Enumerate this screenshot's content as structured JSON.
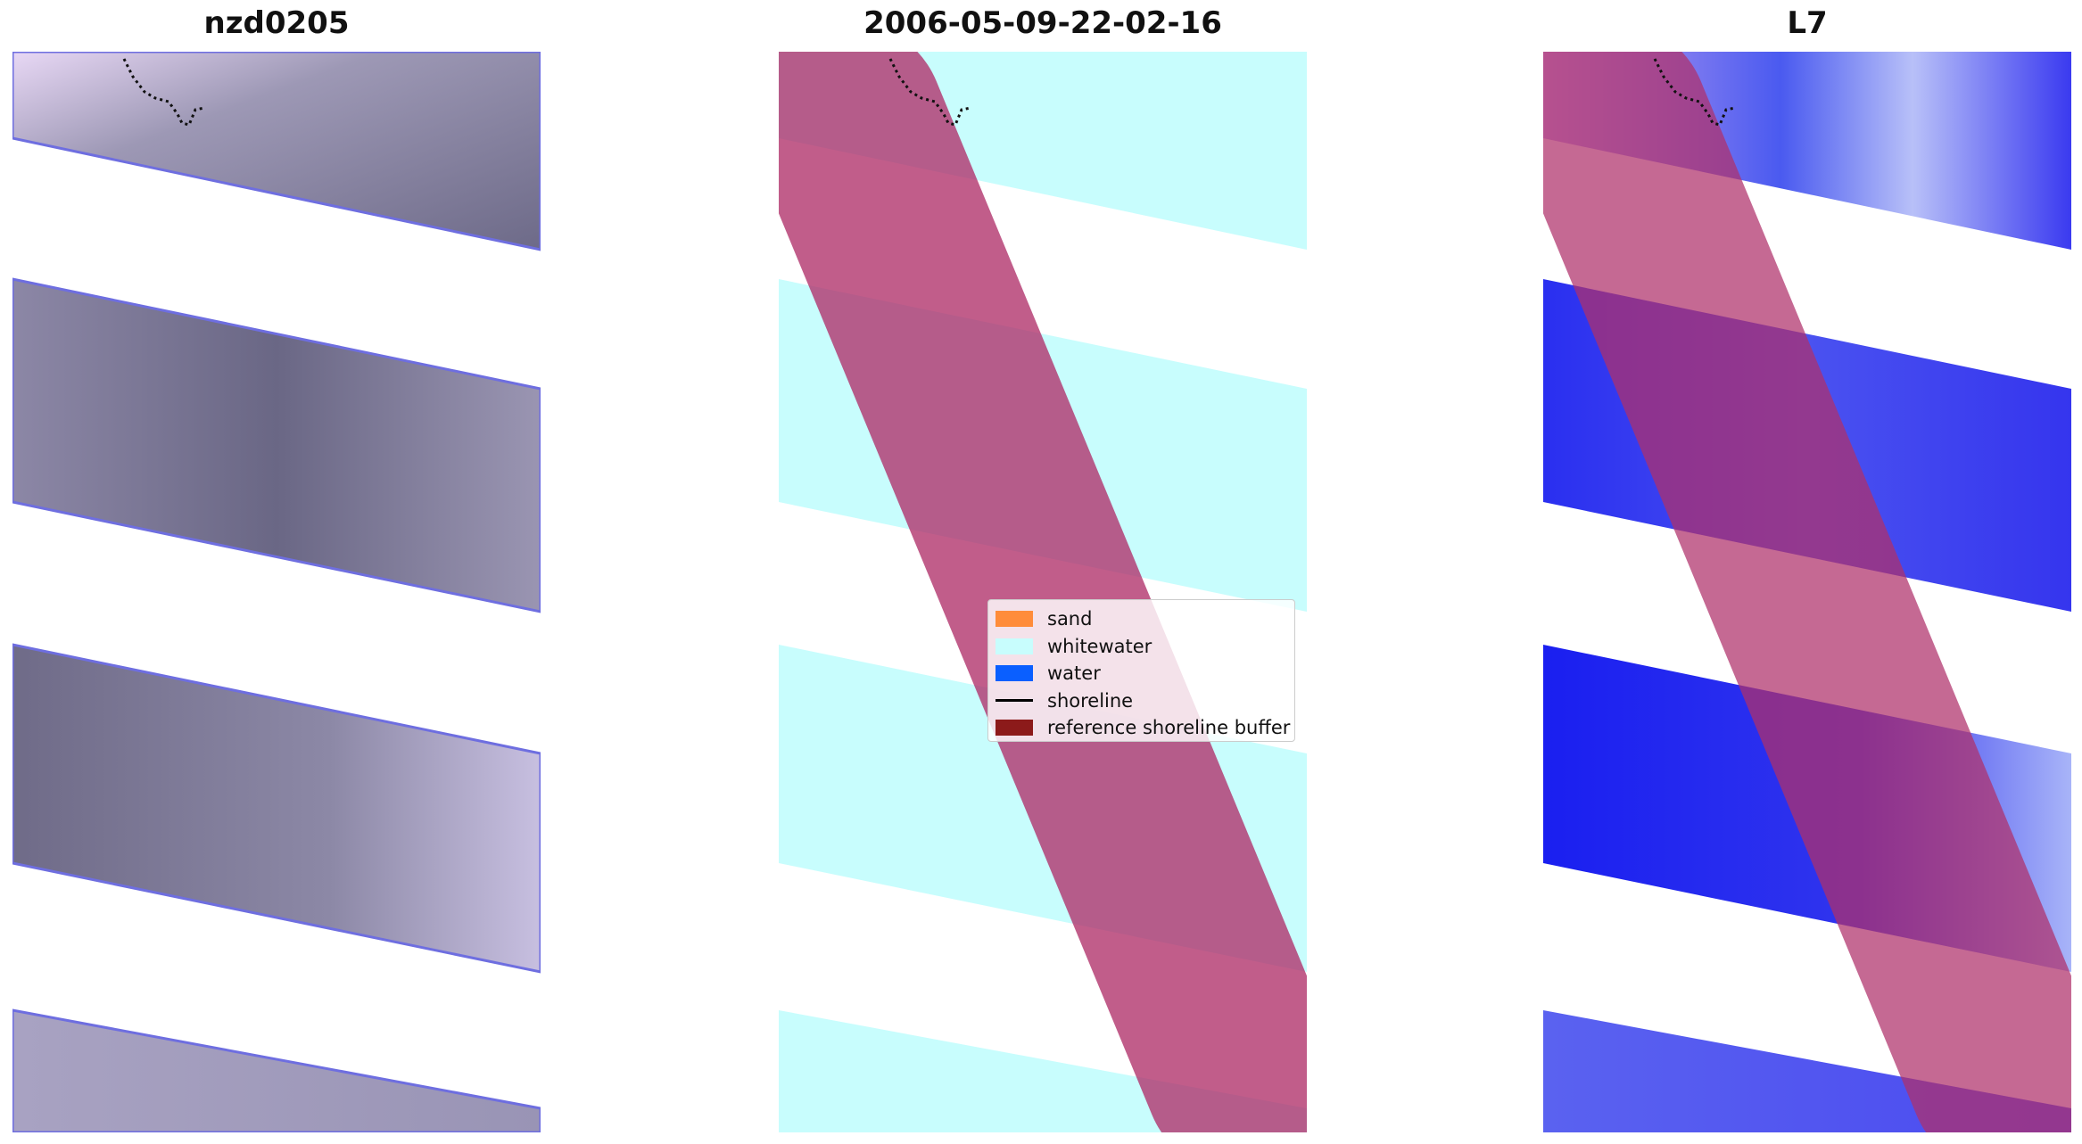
{
  "panels": [
    {
      "title": "nzd0205"
    },
    {
      "title": "2006-05-09-22-02-16"
    },
    {
      "title": "L7"
    }
  ],
  "legend": {
    "items": [
      {
        "label": "sand",
        "color": "#ff8c3a",
        "kind": "patch"
      },
      {
        "label": "whitewater",
        "color": "#c8fdfd",
        "kind": "patch"
      },
      {
        "label": "water",
        "color": "#0a5fff",
        "kind": "patch"
      },
      {
        "label": "shoreline",
        "color": "#000000",
        "kind": "line"
      },
      {
        "label": "reference shoreline buffer",
        "color": "#8c1a1a",
        "kind": "patch"
      }
    ]
  },
  "colors": {
    "rgb_band": "#8f8aaa",
    "whitewater": "#c8fdfd",
    "water_index": "#2a2ff0",
    "buffer_overlay": "#b0306a"
  }
}
